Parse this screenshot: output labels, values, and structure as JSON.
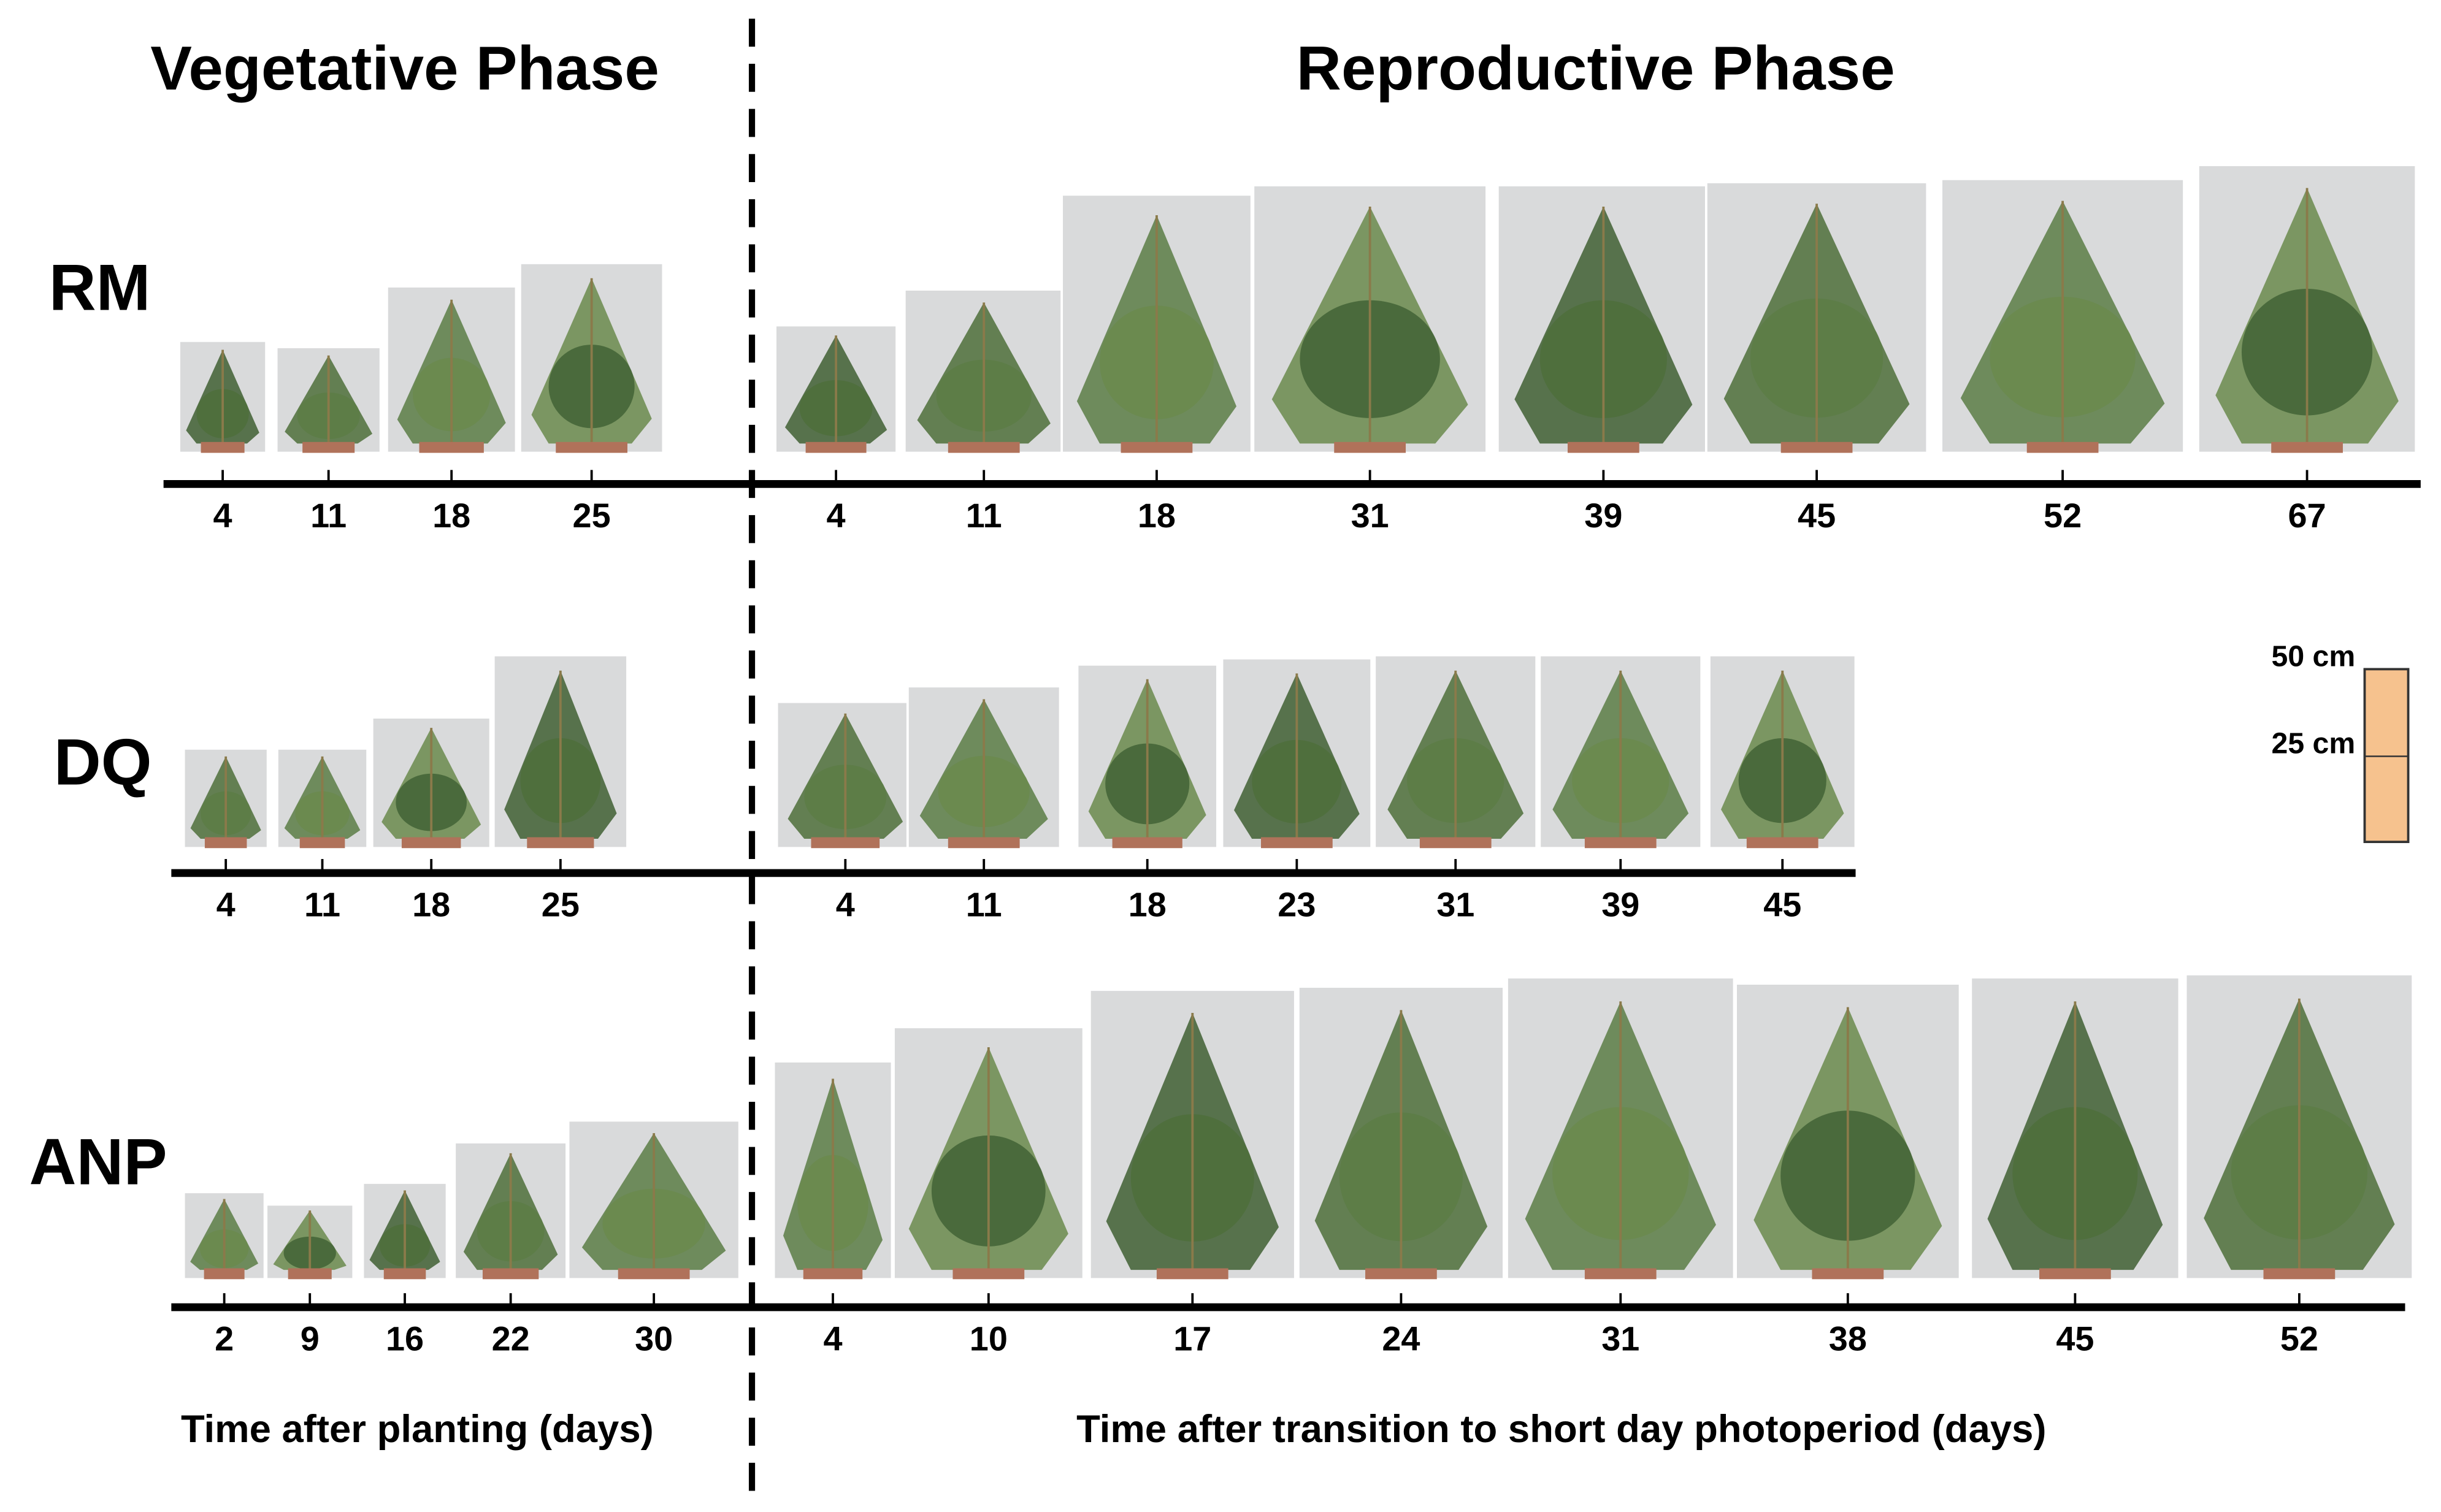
{
  "header": {
    "vegetative": "Vegetative Phase",
    "reproductive": "Reproductive Phase"
  },
  "rows": [
    {
      "label": "RM",
      "vegetative_days": [
        "4",
        "11",
        "18",
        "25"
      ],
      "reproductive_days": [
        "4",
        "11",
        "18",
        "31",
        "39",
        "45",
        "52",
        "67"
      ]
    },
    {
      "label": "DQ",
      "vegetative_days": [
        "4",
        "11",
        "18",
        "25"
      ],
      "reproductive_days": [
        "4",
        "11",
        "18",
        "23",
        "31",
        "39",
        "45"
      ]
    },
    {
      "label": "ANP",
      "vegetative_days": [
        "2",
        "9",
        "16",
        "22",
        "30"
      ],
      "reproductive_days": [
        "4",
        "10",
        "17",
        "24",
        "31",
        "38",
        "45",
        "52"
      ]
    }
  ],
  "axis_labels": {
    "vegetative": "Time after planting (days)",
    "reproductive": "Time after transition to short day photoperiod (days)"
  },
  "scale_bar": {
    "top": "50 cm",
    "middle": "25 cm"
  }
}
